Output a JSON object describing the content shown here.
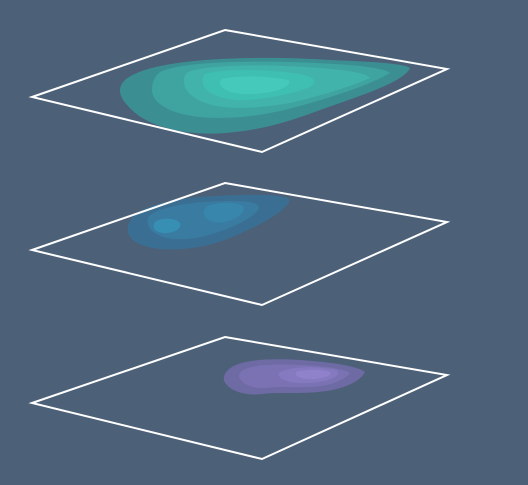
{
  "colors": {
    "background": "#4c6178",
    "plane_outline": "#ffffff"
  },
  "layers": [
    {
      "position": "top",
      "blob_color": "teal",
      "fills": [
        "#3b8f93",
        "#3fa3a0",
        "#41b3aa",
        "#3fbfb1",
        "#44c9ba"
      ]
    },
    {
      "position": "middle",
      "blob_color": "blue",
      "fills": [
        "#3a6f93",
        "#3a7ca1",
        "#3886ab",
        "#378fb3"
      ]
    },
    {
      "position": "bottom",
      "blob_color": "purple",
      "fills": [
        "#6e6aa3",
        "#7a72b3",
        "#8579c0",
        "#8f81ca"
      ]
    }
  ]
}
